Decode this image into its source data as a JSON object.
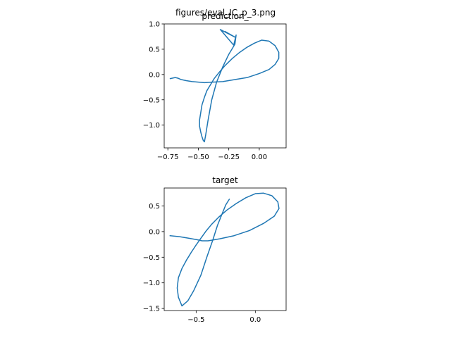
{
  "suptitle": "figures/eval_IC_p_3.png",
  "line_color": "#1f77b4",
  "chart_data": [
    {
      "type": "line",
      "title": "prediction_",
      "xlabel": "",
      "ylabel": "",
      "xlim": [
        -0.78,
        0.22
      ],
      "ylim": [
        -1.45,
        1.0
      ],
      "xticks": [
        -0.75,
        -0.5,
        -0.25,
        0.0
      ],
      "xtick_labels": [
        "−0.75",
        "−0.50",
        "−0.25",
        "0.00"
      ],
      "yticks": [
        1.0,
        0.5,
        0.0,
        -0.5,
        -1.0
      ],
      "ytick_labels": [
        "1.0",
        "0.5",
        "0.0",
        "−0.5",
        "−1.0"
      ],
      "grid": false,
      "series": [
        {
          "x": [
            -0.73,
            -0.71,
            -0.69,
            -0.67,
            -0.64,
            -0.6,
            -0.55,
            -0.5,
            -0.45,
            -0.38,
            -0.3,
            -0.2,
            -0.1,
            0.0,
            0.08,
            0.13,
            0.16,
            0.16,
            0.13,
            0.08,
            0.02,
            -0.04,
            -0.1,
            -0.16,
            -0.22,
            -0.28,
            -0.33,
            -0.37,
            -0.4,
            -0.43,
            -0.45,
            -0.47,
            -0.48,
            -0.49,
            -0.49,
            -0.48,
            -0.47,
            -0.46,
            -0.45,
            -0.44,
            -0.42,
            -0.39,
            -0.35,
            -0.3,
            -0.25,
            -0.2,
            -0.19,
            -0.21,
            -0.32,
            -0.2,
            -0.28
          ],
          "y": [
            -0.08,
            -0.07,
            -0.06,
            -0.07,
            -0.1,
            -0.12,
            -0.14,
            -0.15,
            -0.16,
            -0.15,
            -0.14,
            -0.1,
            -0.06,
            0.02,
            0.1,
            0.2,
            0.32,
            0.44,
            0.57,
            0.66,
            0.68,
            0.62,
            0.54,
            0.44,
            0.32,
            0.18,
            0.04,
            -0.08,
            -0.2,
            -0.32,
            -0.45,
            -0.6,
            -0.75,
            -0.9,
            -1.02,
            -1.14,
            -1.23,
            -1.3,
            -1.33,
            -1.2,
            -0.9,
            -0.5,
            -0.15,
            0.15,
            0.4,
            0.6,
            0.78,
            0.58,
            0.89,
            0.74,
            0.85
          ]
        }
      ]
    },
    {
      "type": "line",
      "title": "target",
      "xlabel": "",
      "ylabel": "",
      "xlim": [
        -0.77,
        0.26
      ],
      "ylim": [
        -1.54,
        0.85
      ],
      "xticks": [
        -0.5,
        0.0
      ],
      "xtick_labels": [
        "−0.5",
        "0.0"
      ],
      "yticks": [
        0.5,
        0.0,
        -0.5,
        -1.0,
        -1.5
      ],
      "ytick_labels": [
        "0.5",
        "0.0",
        "−0.5",
        "−1.0",
        "−1.5"
      ],
      "grid": false,
      "series": [
        {
          "x": [
            -0.72,
            -0.64,
            -0.56,
            -0.49,
            -0.45,
            -0.4,
            -0.3,
            -0.18,
            -0.05,
            0.07,
            0.16,
            0.2,
            0.19,
            0.14,
            0.07,
            0.0,
            -0.08,
            -0.16,
            -0.24,
            -0.31,
            -0.37,
            -0.42,
            -0.46,
            -0.5,
            -0.54,
            -0.58,
            -0.62,
            -0.65,
            -0.66,
            -0.65,
            -0.62,
            -0.57,
            -0.52,
            -0.46,
            -0.41,
            -0.36,
            -0.32,
            -0.28,
            -0.25,
            -0.22
          ],
          "y": [
            -0.08,
            -0.1,
            -0.13,
            -0.16,
            -0.18,
            -0.18,
            -0.14,
            -0.08,
            0.02,
            0.16,
            0.3,
            0.45,
            0.58,
            0.7,
            0.75,
            0.74,
            0.66,
            0.55,
            0.42,
            0.28,
            0.14,
            0.0,
            -0.13,
            -0.26,
            -0.4,
            -0.55,
            -0.72,
            -0.9,
            -1.1,
            -1.28,
            -1.45,
            -1.35,
            -1.15,
            -0.85,
            -0.5,
            -0.17,
            0.12,
            0.35,
            0.52,
            0.63
          ]
        }
      ]
    }
  ]
}
